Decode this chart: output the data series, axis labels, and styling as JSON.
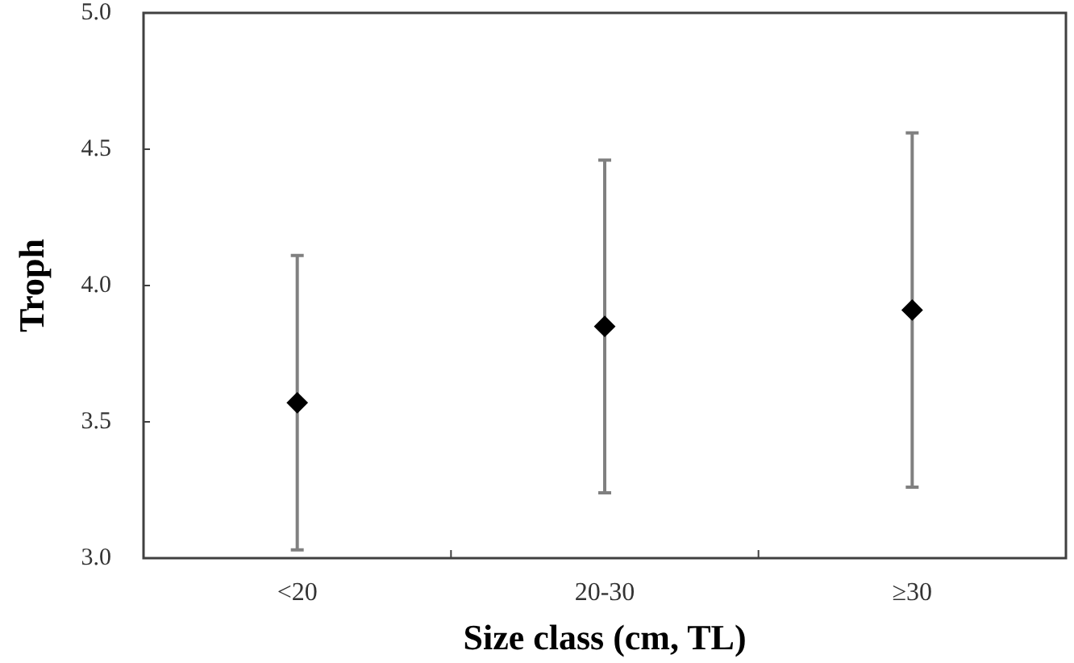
{
  "chart_data": {
    "type": "scatter",
    "xlabel": "Size class (cm, TL)",
    "ylabel": "Troph",
    "categories": [
      "<20",
      "20-30",
      "≥30"
    ],
    "values": [
      3.57,
      3.85,
      3.91
    ],
    "errors": [
      0.54,
      0.61,
      0.65
    ],
    "color": "#000000",
    "marker": "diamond",
    "ylim": [
      3.0,
      5.0
    ],
    "yticks": [
      {
        "value": 3,
        "label": "3.0"
      },
      {
        "value": 3.5,
        "label": "3.5"
      },
      {
        "value": 4,
        "label": "4.0"
      },
      {
        "value": 4.5,
        "label": "4.5"
      },
      {
        "value": 5,
        "label": "5.0"
      }
    ],
    "grid": false
  }
}
